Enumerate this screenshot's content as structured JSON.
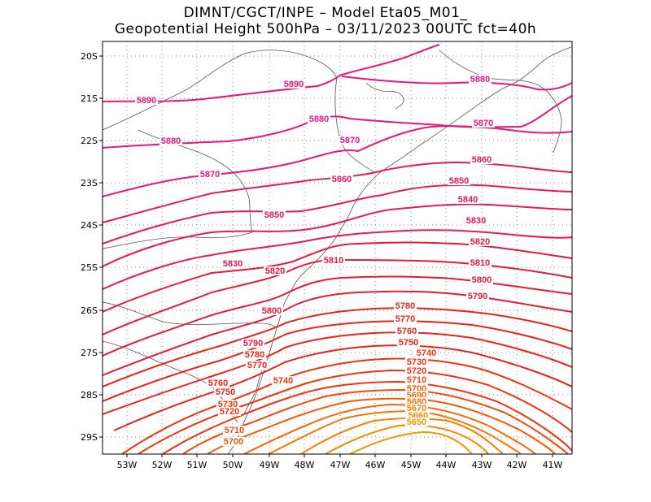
{
  "header": {
    "line1": "DIMNT/CGCT/INPE –  Model Eta05_M01_",
    "line2": "Geopotential Height 500hPa –  03/11/2023 00UTC fct=40h"
  },
  "axes": {
    "lat_labels": [
      "20S",
      "21S",
      "22S",
      "23S",
      "24S",
      "25S",
      "26S",
      "27S",
      "28S",
      "29S"
    ],
    "lon_labels": [
      "53W",
      "52W",
      "51W",
      "50W",
      "49W",
      "48W",
      "47W",
      "46W",
      "45W",
      "44W",
      "43W",
      "42W",
      "41W"
    ]
  },
  "contour_labels": [
    {
      "text": "5890",
      "color": "#e8187a"
    },
    {
      "text": "5890",
      "color": "#e8187a"
    },
    {
      "text": "5880",
      "color": "#e8187a"
    },
    {
      "text": "5880",
      "color": "#e8187a"
    },
    {
      "text": "5880",
      "color": "#e8187a"
    },
    {
      "text": "5870",
      "color": "#e8187a"
    },
    {
      "text": "5870",
      "color": "#e8187a"
    },
    {
      "text": "5870",
      "color": "#e8187a"
    },
    {
      "text": "5860",
      "color": "#e41a5a"
    },
    {
      "text": "5860",
      "color": "#e41a5a"
    },
    {
      "text": "5850",
      "color": "#e41a5a"
    },
    {
      "text": "5850",
      "color": "#e41a5a"
    },
    {
      "text": "5840",
      "color": "#e41a5a"
    },
    {
      "text": "5830",
      "color": "#e41a5a"
    },
    {
      "text": "5830",
      "color": "#e41a5a"
    },
    {
      "text": "5820",
      "color": "#e41a3a"
    },
    {
      "text": "5820",
      "color": "#e41a3a"
    },
    {
      "text": "5810",
      "color": "#e41a3a"
    },
    {
      "text": "5810",
      "color": "#e41a3a"
    },
    {
      "text": "5800",
      "color": "#e41a3a"
    },
    {
      "text": "5800",
      "color": "#e41a3a"
    },
    {
      "text": "5790",
      "color": "#e41a3a"
    },
    {
      "text": "5790",
      "color": "#e41a3a"
    },
    {
      "text": "5780",
      "color": "#e82418"
    },
    {
      "text": "5780",
      "color": "#e82418"
    },
    {
      "text": "5770",
      "color": "#e82418"
    },
    {
      "text": "5770",
      "color": "#e82418"
    },
    {
      "text": "5760",
      "color": "#e82418"
    },
    {
      "text": "5760",
      "color": "#e82418"
    },
    {
      "text": "5750",
      "color": "#e82418"
    },
    {
      "text": "5750",
      "color": "#e82418"
    },
    {
      "text": "5740",
      "color": "#ec3410"
    },
    {
      "text": "5740",
      "color": "#ec3410"
    },
    {
      "text": "5730",
      "color": "#ec3410"
    },
    {
      "text": "5730",
      "color": "#ec3410"
    },
    {
      "text": "5720",
      "color": "#ec3410"
    },
    {
      "text": "5720",
      "color": "#ec3410"
    },
    {
      "text": "5710",
      "color": "#f04a0c"
    },
    {
      "text": "5710",
      "color": "#f04a0c"
    },
    {
      "text": "5700",
      "color": "#f05a0a"
    },
    {
      "text": "5700",
      "color": "#f05a0a"
    },
    {
      "text": "5690",
      "color": "#f46808"
    },
    {
      "text": "5680",
      "color": "#f47406"
    },
    {
      "text": "5670",
      "color": "#f48004"
    },
    {
      "text": "5660",
      "color": "#f48a04"
    },
    {
      "text": "5650",
      "color": "#f49402"
    }
  ]
}
